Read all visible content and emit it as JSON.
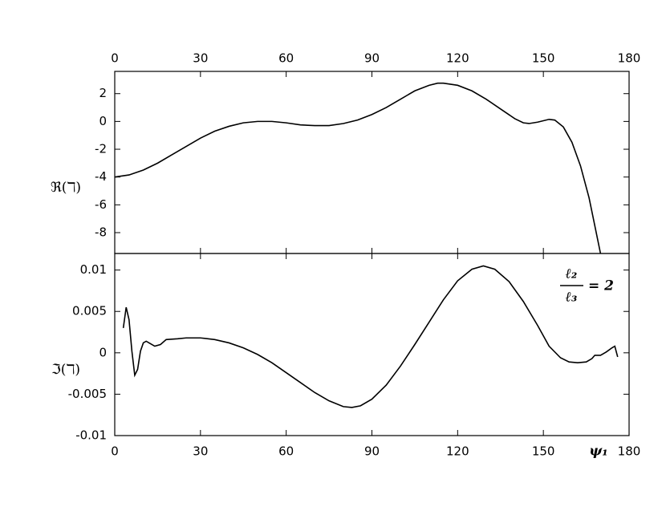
{
  "chart_data": [
    {
      "type": "line",
      "y_label": "ℜ(ℸ)",
      "xlim": [
        0,
        180
      ],
      "xticks": [
        0,
        30,
        60,
        90,
        120,
        150,
        180
      ],
      "ylim": [
        -9.5,
        3.6
      ],
      "yticks": [
        -8,
        -6,
        -4,
        -2,
        0,
        2
      ],
      "series": [
        {
          "color": "#000000",
          "x": [
            0,
            5,
            10,
            15,
            20,
            25,
            30,
            35,
            40,
            45,
            50,
            55,
            60,
            65,
            70,
            75,
            80,
            85,
            90,
            95,
            100,
            105,
            110,
            113,
            115,
            120,
            125,
            130,
            135,
            140,
            143,
            145,
            148,
            152,
            154,
            157,
            160,
            163,
            166,
            168,
            170
          ],
          "values": [
            -4.0,
            -3.85,
            -3.5,
            -3.0,
            -2.4,
            -1.8,
            -1.2,
            -0.7,
            -0.35,
            -0.1,
            0.0,
            0.0,
            -0.1,
            -0.25,
            -0.3,
            -0.3,
            -0.15,
            0.1,
            0.5,
            1.0,
            1.6,
            2.2,
            2.6,
            2.75,
            2.75,
            2.6,
            2.2,
            1.6,
            0.9,
            0.2,
            -0.1,
            -0.15,
            -0.05,
            0.15,
            0.1,
            -0.4,
            -1.5,
            -3.2,
            -5.5,
            -7.5,
            -9.5
          ]
        }
      ]
    },
    {
      "type": "line",
      "y_label": "ℑ(ℸ)",
      "x_label": "ψ₁",
      "annotation": {
        "numerator": "ℓ₂",
        "denominator": "ℓ₃",
        "text": "= 2"
      },
      "xlim": [
        0,
        180
      ],
      "xticks": [
        0,
        30,
        60,
        90,
        120,
        150,
        180
      ],
      "ylim": [
        -0.01,
        0.012
      ],
      "yticks": [
        -0.01,
        -0.005,
        0,
        0.005,
        0.01
      ],
      "series": [
        {
          "color": "#000000",
          "x": [
            3,
            4,
            5,
            6,
            7,
            8,
            9,
            10,
            11,
            12,
            14,
            16,
            18,
            22,
            25,
            30,
            35,
            40,
            45,
            50,
            55,
            60,
            65,
            70,
            75,
            80,
            83,
            86,
            90,
            95,
            100,
            105,
            110,
            115,
            120,
            125,
            129,
            133,
            138,
            143,
            148,
            152,
            156,
            159,
            162,
            165,
            167,
            168,
            170,
            172,
            174,
            175,
            176
          ],
          "values": [
            0.003,
            0.0055,
            0.004,
            0.0002,
            -0.0027,
            -0.002,
            0.0002,
            0.0012,
            0.0014,
            0.0012,
            0.0008,
            0.001,
            0.0016,
            0.0017,
            0.0018,
            0.0018,
            0.0016,
            0.0012,
            0.0006,
            -0.0002,
            -0.0012,
            -0.0024,
            -0.0036,
            -0.0048,
            -0.0058,
            -0.0065,
            -0.0066,
            -0.0064,
            -0.0056,
            -0.0039,
            -0.0016,
            0.001,
            0.0037,
            0.0064,
            0.0087,
            0.0101,
            0.0105,
            0.0101,
            0.0086,
            0.0062,
            0.0033,
            0.0008,
            -0.0006,
            -0.0011,
            -0.0012,
            -0.0011,
            -0.0007,
            -0.0003,
            -0.0003,
            0.0001,
            0.0006,
            0.0008,
            -0.0005
          ]
        }
      ]
    }
  ]
}
